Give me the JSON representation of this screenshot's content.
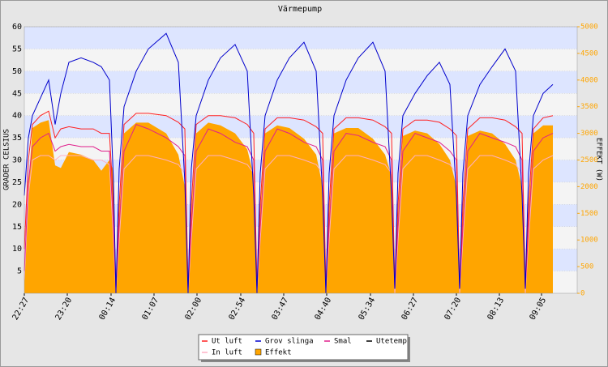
{
  "chart_data": {
    "type": "line",
    "title": "Värmepump",
    "ylabel": "GRADER CELSIUS",
    "y2label": "EFFEKT (W)",
    "x": [
      0,
      5,
      10,
      20,
      30,
      38,
      45,
      55,
      70,
      85,
      95,
      105,
      110,
      113,
      117,
      123,
      138,
      153,
      175,
      190,
      198,
      202,
      206,
      212,
      227,
      242,
      260,
      275,
      283,
      287,
      291,
      297,
      312,
      327,
      345,
      360,
      368,
      372,
      376,
      382,
      397,
      412,
      430,
      445,
      453,
      457,
      461,
      467,
      482,
      497,
      512,
      525,
      533,
      537,
      541,
      547,
      562,
      577,
      593,
      606,
      614,
      618,
      622,
      628,
      640,
      652
    ],
    "xlim": [
      0,
      682
    ],
    "xticks": [
      {
        "value": 0,
        "label": "22:27"
      },
      {
        "value": 53,
        "label": "23:20"
      },
      {
        "value": 107,
        "label": "00:14"
      },
      {
        "value": 160,
        "label": "01:07"
      },
      {
        "value": 213,
        "label": "02:00"
      },
      {
        "value": 267,
        "label": "02:54"
      },
      {
        "value": 320,
        "label": "03:47"
      },
      {
        "value": 373,
        "label": "04:40"
      },
      {
        "value": 427,
        "label": "05:34"
      },
      {
        "value": 480,
        "label": "06:27"
      },
      {
        "value": 533,
        "label": "07:20"
      },
      {
        "value": 586,
        "label": "08:13"
      },
      {
        "value": 638,
        "label": "09:05"
      }
    ],
    "ylim": [
      0,
      60
    ],
    "yticks": [
      5,
      10,
      15,
      20,
      25,
      30,
      35,
      40,
      45,
      50,
      55,
      60
    ],
    "y2lim": [
      0,
      5000
    ],
    "y2ticks": [
      0,
      500,
      1000,
      1500,
      2000,
      2500,
      3000,
      3500,
      4000,
      4500,
      5000
    ],
    "grid": true,
    "series": [
      {
        "name": "Effekt",
        "color": "#ffa500",
        "axis": "y2",
        "fill": true,
        "values": [
          300,
          2000,
          3100,
          3200,
          3250,
          2400,
          2350,
          2650,
          2600,
          2500,
          2300,
          2500,
          2300,
          0,
          1500,
          3000,
          3200,
          3200,
          3000,
          2600,
          2000,
          0,
          1500,
          3000,
          3200,
          3150,
          3000,
          2700,
          2200,
          0,
          1500,
          3000,
          3150,
          3100,
          2900,
          2600,
          2000,
          0,
          1500,
          3000,
          3100,
          3100,
          2900,
          2600,
          2200,
          0,
          1500,
          2950,
          3050,
          3000,
          2800,
          2500,
          2000,
          0,
          1500,
          2950,
          3050,
          3000,
          2800,
          2500,
          2000,
          0,
          1500,
          3000,
          3150,
          3150
        ]
      },
      {
        "name": "In luft",
        "color": "#ffb0c4",
        "values": [
          3,
          22,
          30,
          31,
          31,
          30,
          31,
          31,
          31,
          30,
          30,
          29,
          12,
          0,
          12,
          28,
          31,
          31,
          30,
          29,
          27,
          0,
          12,
          28,
          31,
          31,
          30,
          29,
          27,
          0,
          12,
          28,
          31,
          31,
          30,
          29,
          27,
          0,
          12,
          28,
          31,
          31,
          30,
          29,
          27,
          0,
          12,
          28,
          31,
          31,
          30,
          29,
          27,
          0,
          12,
          28,
          31,
          31,
          30,
          29,
          27,
          0,
          12,
          28,
          30,
          31
        ]
      },
      {
        "name": "Smal",
        "color": "#e0208c",
        "values": [
          5,
          25,
          33,
          35,
          36,
          32,
          33,
          33.5,
          33,
          33,
          32,
          32,
          15,
          1,
          15,
          32,
          38,
          37,
          35,
          33,
          31,
          1,
          15,
          32,
          37,
          36,
          34,
          33,
          30,
          1,
          15,
          32,
          37,
          36,
          34,
          33,
          30,
          1,
          15,
          32,
          36,
          35.5,
          34,
          33,
          30,
          1,
          15,
          32,
          36,
          35,
          34,
          32,
          30,
          1,
          15,
          32,
          36,
          35,
          34,
          33,
          30,
          1,
          15,
          32,
          35,
          36
        ]
      },
      {
        "name": "Ut luft",
        "color": "#ff2020",
        "values": [
          10,
          30,
          38,
          40,
          41,
          35,
          37,
          37.5,
          37,
          37,
          36,
          36,
          20,
          1,
          20,
          38,
          40.5,
          40.5,
          40,
          38.5,
          37,
          1,
          20,
          38,
          40,
          40,
          39.5,
          38,
          36,
          1,
          20,
          37,
          39.5,
          39.5,
          39,
          37.5,
          36,
          1,
          20,
          37,
          39.5,
          39.5,
          39,
          37.5,
          36,
          1,
          20,
          37,
          39,
          39,
          38.5,
          37,
          35.5,
          1,
          20,
          37,
          39.5,
          39.5,
          39,
          37.5,
          36,
          1,
          20,
          37,
          39.5,
          40
        ]
      },
      {
        "name": "Grov slinga",
        "color": "#0000cc",
        "values": [
          22,
          35,
          40,
          44,
          48,
          38,
          45,
          52,
          53,
          52,
          51,
          48,
          25,
          0,
          28,
          42,
          50,
          55,
          58.5,
          52,
          25,
          0,
          28,
          40,
          48,
          53,
          56,
          50,
          22,
          0,
          27,
          40,
          48,
          53,
          56.5,
          50,
          22,
          0,
          27,
          40,
          48,
          53,
          56.5,
          50,
          22,
          1,
          27,
          40,
          45,
          49,
          52,
          47,
          22,
          1,
          27,
          40,
          47,
          51,
          55,
          50,
          22,
          1,
          27,
          40,
          45,
          47
        ]
      },
      {
        "name": "Utetemp",
        "color": "#000000"
      }
    ]
  }
}
